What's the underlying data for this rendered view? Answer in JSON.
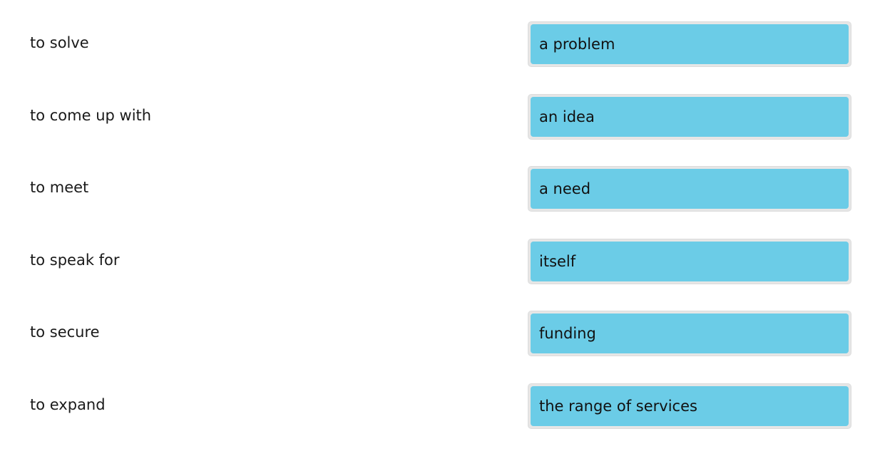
{
  "pairs": [
    {
      "prompt": "to solve",
      "answer": "a problem"
    },
    {
      "prompt": "to come up with",
      "answer": "an idea"
    },
    {
      "prompt": "to meet",
      "answer": "a need"
    },
    {
      "prompt": "to speak for",
      "answer": "itself"
    },
    {
      "prompt": "to secure",
      "answer": "funding"
    },
    {
      "prompt": "to expand",
      "answer": "the range of services"
    }
  ],
  "colors": {
    "chip": "#6bcce7",
    "slot": "#e6e6e6"
  }
}
